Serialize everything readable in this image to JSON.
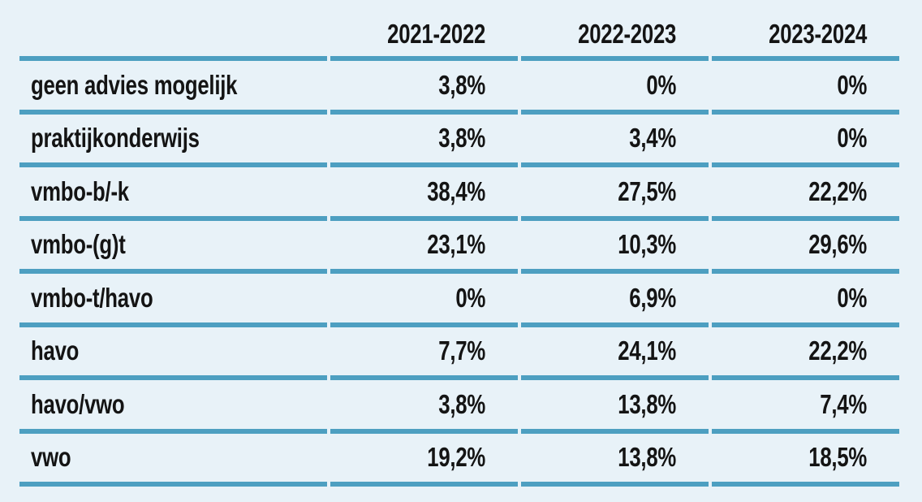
{
  "page": {
    "background_color": "#e8f2f8",
    "rule_color": "#4d9fc1",
    "text_color": "#141414"
  },
  "table": {
    "columns": [
      "",
      "2021-2022",
      "2022-2023",
      "2023-2024"
    ],
    "rows": [
      {
        "label": "geen advies mogelijk",
        "values": [
          "3,8%",
          "0%",
          "0%"
        ]
      },
      {
        "label": "praktijkonderwijs",
        "values": [
          "3,8%",
          "3,4%",
          "0%"
        ]
      },
      {
        "label": "vmbo-b/-k",
        "values": [
          "38,4%",
          "27,5%",
          "22,2%"
        ]
      },
      {
        "label": "vmbo-(g)t",
        "values": [
          "23,1%",
          "10,3%",
          "29,6%"
        ]
      },
      {
        "label": "vmbo-t/havo",
        "values": [
          "0%",
          "6,9%",
          "0%"
        ]
      },
      {
        "label": "havo",
        "values": [
          "7,7%",
          "24,1%",
          "22,2%"
        ]
      },
      {
        "label": "havo/vwo",
        "values": [
          "3,8%",
          "13,8%",
          "7,4%"
        ]
      },
      {
        "label": "vwo",
        "values": [
          "19,2%",
          "13,8%",
          "18,5%"
        ]
      }
    ]
  },
  "chart_data": {
    "type": "table",
    "title": "",
    "columns": [
      "2021-2022",
      "2022-2023",
      "2023-2024"
    ],
    "row_labels": [
      "geen advies mogelijk",
      "praktijkonderwijs",
      "vmbo-b/-k",
      "vmbo-(g)t",
      "vmbo-t/havo",
      "havo",
      "havo/vwo",
      "vwo"
    ],
    "series": [
      {
        "name": "geen advies mogelijk",
        "values": [
          3.8,
          0,
          0
        ]
      },
      {
        "name": "praktijkonderwijs",
        "values": [
          3.8,
          3.4,
          0
        ]
      },
      {
        "name": "vmbo-b/-k",
        "values": [
          38.4,
          27.5,
          22.2
        ]
      },
      {
        "name": "vmbo-(g)t",
        "values": [
          23.1,
          10.3,
          29.6
        ]
      },
      {
        "name": "vmbo-t/havo",
        "values": [
          0,
          6.9,
          0
        ]
      },
      {
        "name": "havo",
        "values": [
          7.7,
          24.1,
          22.2
        ]
      },
      {
        "name": "havo/vwo",
        "values": [
          3.8,
          13.8,
          7.4
        ]
      },
      {
        "name": "vwo",
        "values": [
          19.2,
          13.8,
          18.5
        ]
      }
    ],
    "unit": "%",
    "decimal_separator": ","
  }
}
